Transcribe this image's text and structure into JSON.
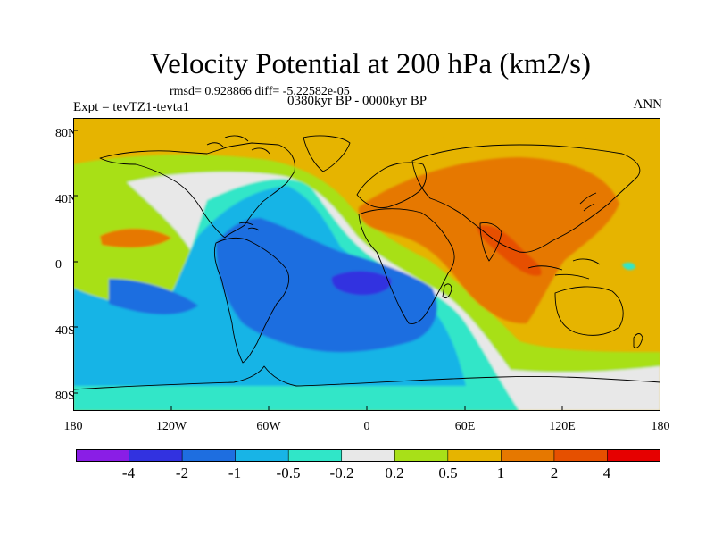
{
  "title": "Velocity Potential at 200 hPa (km2/s)",
  "stats_line": "rmsd= 0.928866 diff= -5.22582e-05",
  "period": "0380kyr BP - 0000kyr BP",
  "experiment": "Expt = tevTZ1-tevta1",
  "season": "ANN",
  "lat_labels": [
    "80N",
    "40N",
    "0",
    "40S",
    "80S"
  ],
  "lon_labels": [
    "180",
    "120W",
    "60W",
    "0",
    "60E",
    "120E",
    "180"
  ],
  "colorbar": {
    "colors": [
      "#8a1ee6",
      "#3232e0",
      "#1e6ee0",
      "#18b4e6",
      "#30e6c8",
      "#e8e8e8",
      "#a8e018",
      "#e6b400",
      "#e67800",
      "#e65000",
      "#e60000"
    ],
    "labels": [
      "-4",
      "-2",
      "-1",
      "-0.5",
      "-0.2",
      "0.2",
      "0.5",
      "1",
      "2",
      "4"
    ]
  }
}
